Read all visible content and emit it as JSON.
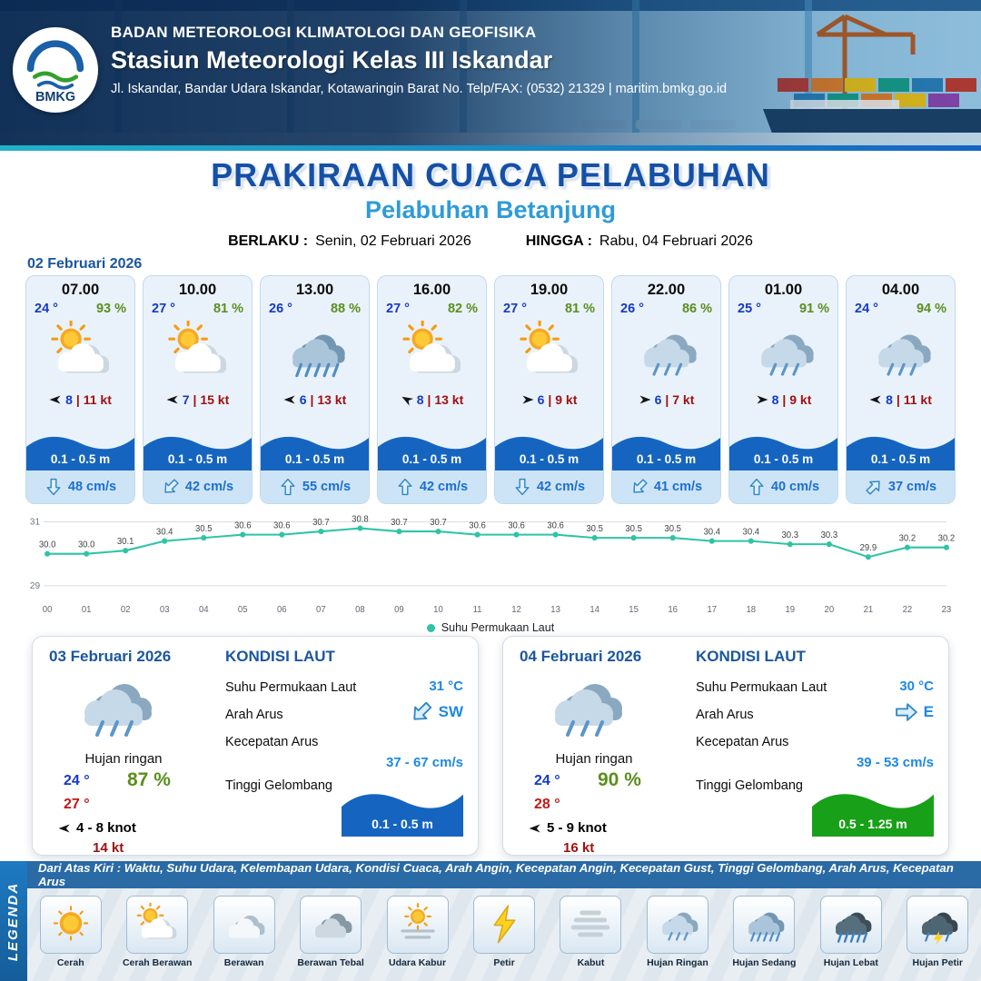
{
  "header": {
    "org": "BADAN METEOROLOGI KLIMATOLOGI DAN GEOFISIKA",
    "station": "Stasiun Meteorologi Kelas III Iskandar",
    "address": "Jl. Iskandar, Bandar Udara Iskandar, Kotawaringin Barat No. Telp/FAX: (0532) 21329 | maritim.bmkg.go.id",
    "logo_text": "BMKG"
  },
  "title": {
    "main": "PRAKIRAAN CUACA PELABUHAN",
    "subtitle": "Pelabuhan Betanjung",
    "berlaku_label": "BERLAKU :",
    "berlaku_value": "Senin, 02 Februari 2026",
    "hingga_label": "HINGGA :",
    "hingga_value": "Rabu, 04 Februari 2026"
  },
  "hourly": {
    "date": "02 Februari 2026",
    "cards": [
      {
        "time": "07.00",
        "temp": "24 °",
        "rh": "93 %",
        "icon": "cerah-berawan",
        "wind": "8",
        "gust": "| 11 kt",
        "wind_deg": 270,
        "wave": "0.1 - 0.5 m",
        "current": "48 cm/s",
        "current_deg": 180
      },
      {
        "time": "10.00",
        "temp": "27 °",
        "rh": "81 %",
        "icon": "cerah-berawan",
        "wind": "7",
        "gust": "| 15 kt",
        "wind_deg": 270,
        "wave": "0.1 - 0.5 m",
        "current": "42 cm/s",
        "current_deg": 225
      },
      {
        "time": "13.00",
        "temp": "26 °",
        "rh": "88 %",
        "icon": "hujan-sedang",
        "wind": "6",
        "gust": "| 13 kt",
        "wind_deg": 270,
        "wave": "0.1 - 0.5 m",
        "current": "55 cm/s",
        "current_deg": 0
      },
      {
        "time": "16.00",
        "temp": "27 °",
        "rh": "82 %",
        "icon": "cerah-berawan",
        "wind": "8",
        "gust": "| 13 kt",
        "wind_deg": 300,
        "wave": "0.1 - 0.5 m",
        "current": "42 cm/s",
        "current_deg": 0
      },
      {
        "time": "19.00",
        "temp": "27 °",
        "rh": "81 %",
        "icon": "cerah-berawan",
        "wind": "6",
        "gust": "| 9 kt",
        "wind_deg": 90,
        "wave": "0.1 - 0.5 m",
        "current": "42 cm/s",
        "current_deg": 180
      },
      {
        "time": "22.00",
        "temp": "26 °",
        "rh": "86 %",
        "icon": "hujan-ringan",
        "wind": "6",
        "gust": "| 7 kt",
        "wind_deg": 90,
        "wave": "0.1 - 0.5 m",
        "current": "41 cm/s",
        "current_deg": 225
      },
      {
        "time": "01.00",
        "temp": "25 °",
        "rh": "91 %",
        "icon": "hujan-ringan",
        "wind": "8",
        "gust": "| 9 kt",
        "wind_deg": 90,
        "wave": "0.1 - 0.5 m",
        "current": "40 cm/s",
        "current_deg": 0
      },
      {
        "time": "04.00",
        "temp": "24 °",
        "rh": "94 %",
        "icon": "hujan-ringan",
        "wind": "8",
        "gust": "| 11 kt",
        "wind_deg": 270,
        "wave": "0.1 - 0.5 m",
        "current": "37 cm/s",
        "current_deg": 45
      }
    ]
  },
  "chart_data": {
    "type": "line",
    "series_name": "Suhu Permukaan Laut",
    "x": [
      "00",
      "01",
      "02",
      "03",
      "04",
      "05",
      "06",
      "07",
      "08",
      "09",
      "10",
      "11",
      "12",
      "13",
      "14",
      "15",
      "16",
      "17",
      "18",
      "19",
      "20",
      "21",
      "22",
      "23"
    ],
    "values": [
      30.0,
      30.0,
      30.1,
      30.4,
      30.5,
      30.6,
      30.6,
      30.7,
      30.8,
      30.7,
      30.7,
      30.6,
      30.6,
      30.6,
      30.5,
      30.5,
      30.5,
      30.4,
      30.4,
      30.3,
      30.3,
      29.9,
      30.2,
      30.2
    ],
    "ylim": [
      29,
      31
    ],
    "yticks": [
      29,
      31
    ],
    "line_color": "#2ec4a5",
    "legend_position": "bottom",
    "grid": true
  },
  "daily": [
    {
      "date": "03 Februari 2026",
      "icon": "hujan-ringan",
      "condition": "Hujan ringan",
      "temp_min": "24 °",
      "temp_max": "27 °",
      "rh": "87 %",
      "wind": "4 - 8 knot",
      "gust": "14 kt",
      "wind_deg": 270,
      "sea": {
        "title": "KONDISI LAUT",
        "sst_label": "Suhu Permukaan Laut",
        "sst": "31 °C",
        "arah_label": "Arah Arus",
        "arah": "SW",
        "arah_deg": 225,
        "kec_label": "Kecepatan Arus",
        "kec": "37 - 67 cm/s",
        "gel_label": "Tinggi Gelombang",
        "gel": "0.1 - 0.5 m",
        "gel_color": "#1565c0"
      }
    },
    {
      "date": "04 Februari 2026",
      "icon": "hujan-ringan",
      "condition": "Hujan ringan",
      "temp_min": "24 °",
      "temp_max": "28 °",
      "rh": "90 %",
      "wind": "5 - 9 knot",
      "gust": "16 kt",
      "wind_deg": 270,
      "sea": {
        "title": "KONDISI LAUT",
        "sst_label": "Suhu Permukaan Laut",
        "sst": "30 °C",
        "arah_label": "Arah Arus",
        "arah": "E",
        "arah_deg": 90,
        "kec_label": "Kecepatan Arus",
        "kec": "39 - 53 cm/s",
        "gel_label": "Tinggi Gelombang",
        "gel": "0.5 - 1.25 m",
        "gel_color": "#18a018"
      }
    }
  ],
  "legend": {
    "vertical_label": "LEGENDA",
    "description": "Dari Atas Kiri : Waktu, Suhu Udara, Kelembapan Udara, Kondisi Cuaca, Arah Angin, Kecepatan Angin, Kecepatan Gust, Tinggi Gelombang, Arah Arus, Kecepatan Arus",
    "items": [
      {
        "label": "Cerah",
        "icon": "cerah"
      },
      {
        "label": "Cerah Berawan",
        "icon": "cerah-berawan"
      },
      {
        "label": "Berawan",
        "icon": "berawan"
      },
      {
        "label": "Berawan Tebal",
        "icon": "berawan-tebal"
      },
      {
        "label": "Udara Kabur",
        "icon": "udara-kabur"
      },
      {
        "label": "Petir",
        "icon": "petir"
      },
      {
        "label": "Kabut",
        "icon": "kabut"
      },
      {
        "label": "Hujan Ringan",
        "icon": "hujan-ringan"
      },
      {
        "label": "Hujan Sedang",
        "icon": "hujan-sedang"
      },
      {
        "label": "Hujan Lebat",
        "icon": "hujan-lebat"
      },
      {
        "label": "Hujan Petir",
        "icon": "hujan-petir"
      }
    ]
  },
  "colors": {
    "header_navy": "#0d2f5c",
    "accent_blue": "#1550a6",
    "subtitle_blue": "#2f9bd8",
    "temp_blue": "#1539c8",
    "humidity_green": "#5a8f1d",
    "gust_red": "#a01010",
    "wave_band": "#1565c0",
    "wave_green": "#18a018",
    "current_text": "#1b6fd0",
    "chart_line": "#2ec4a5",
    "legend_bar": "#2a6aa5"
  }
}
